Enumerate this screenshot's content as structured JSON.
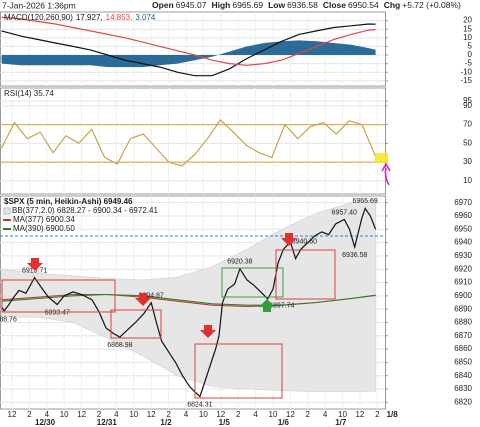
{
  "header": {
    "date": "7-Jan-2026 1:36pm",
    "fields": [
      {
        "label": "Open",
        "value": "6945.07"
      },
      {
        "label": "High",
        "value": "6965.69"
      },
      {
        "label": "Low",
        "value": "6936.58"
      },
      {
        "label": "Close",
        "value": "6950.54"
      },
      {
        "label": "Chg",
        "value": "+5.72 (+0.08%)"
      }
    ]
  },
  "chart_data": [
    {
      "type": "line",
      "title": "MACD(120,260,90)",
      "x": [
        -0.6,
        0.5,
        1.5,
        2.5,
        3.5,
        4.5,
        5.5,
        6.5,
        7.5,
        8.5,
        9.5,
        10.5,
        11.5,
        12.5,
        13.5,
        14.5,
        15.5,
        16.5,
        17.5,
        18.5,
        19.5,
        20.5,
        20.9
      ],
      "series": [
        {
          "label": "17.927,",
          "color": "#111111",
          "values": [
            14,
            11,
            9,
            7,
            5,
            3,
            0,
            -3,
            -5,
            -7,
            -10,
            -12,
            -12,
            -8,
            -2,
            3,
            8,
            12,
            14,
            16,
            17,
            18,
            17.927
          ]
        },
        {
          "label": "14.853,",
          "color": "#e04848",
          "values": [
            22,
            21,
            19.5,
            18,
            16,
            14,
            12,
            10,
            7.5,
            5,
            2.5,
            0,
            -3,
            -5,
            -6,
            -5,
            -3,
            1,
            5,
            9,
            12,
            14.5,
            14.853
          ]
        },
        {
          "label": "3.074",
          "color": "#1f6391",
          "type": "area",
          "values": [
            -5,
            -6,
            -6,
            -6,
            -6,
            -6,
            -7,
            -7,
            -7,
            -6,
            -5,
            -3,
            -1,
            2,
            5,
            7,
            8,
            8.5,
            8,
            7,
            6,
            4,
            3.074
          ]
        }
      ],
      "xlim": [
        -0.69,
        21.44
      ],
      "ylim": [
        -18,
        25
      ],
      "yticks": [
        20,
        15,
        10,
        5,
        0,
        -5,
        -10,
        -15
      ],
      "grid": true
    },
    {
      "type": "line",
      "title": "RSI(14) 35.74",
      "x": [
        -0.6,
        0.14,
        0.88,
        1.62,
        2.36,
        3.1,
        3.84,
        4.58,
        5.32,
        6.06,
        6.8,
        7.54,
        8.28,
        9.02,
        9.76,
        10.5,
        11.24,
        11.98,
        12.72,
        13.46,
        14.2,
        14.94,
        15.68,
        16.42,
        17.16,
        17.9,
        18.64,
        19.38,
        20.12,
        20.9
      ],
      "series": [
        {
          "color": "#c9a24a",
          "values": [
            45,
            72,
            55,
            62,
            40,
            58,
            50,
            65,
            35,
            28,
            55,
            60,
            45,
            30,
            26,
            38,
            55,
            75,
            62,
            48,
            40,
            35,
            70,
            55,
            68,
            72,
            60,
            74,
            70,
            35.74
          ]
        }
      ],
      "ref_lines": [
        70,
        30
      ],
      "ref_color": "#e0a030",
      "xlim": [
        -0.69,
        21.44
      ],
      "ylim": [
        -4,
        109
      ],
      "yticks": [
        95,
        90,
        70,
        50,
        30,
        10
      ],
      "grid": true
    },
    {
      "type": "line",
      "title": "$SPX (5 min, Heikin-Ashi) 6949.46",
      "x": [
        -0.6,
        -0.45,
        -0.2,
        0.1,
        0.4,
        0.8,
        1.3,
        1.7,
        2.1,
        2.6,
        3,
        3.5,
        4,
        4.6,
        5,
        5.4,
        5.8,
        6.2,
        6.6,
        7.1,
        7.6,
        8,
        8.3,
        8.6,
        9,
        9.4,
        9.8,
        10.2,
        10.5,
        10.8,
        11.1,
        11.4,
        11.7,
        11.9,
        12.1,
        12.4,
        12.8,
        13.1,
        13.5,
        13.9,
        14.3,
        14.7,
        15,
        15.3,
        15.6,
        16,
        16.3,
        16.6,
        17,
        17.4,
        17.8,
        18.2,
        18.6,
        19.1,
        19.4,
        19.7,
        20.1,
        20.3,
        20.6,
        20.9
      ],
      "series": [
        {
          "color": "#111111",
          "values": [
            6892,
            6888.76,
            6893,
            6899,
            6904,
            6902,
            6913.71,
            6906,
            6899,
            6893.47,
            6900,
            6903,
            6901,
            6897,
            6888,
            6876,
            6872,
            6868.98,
            6874,
            6880,
            6887,
            6894.87,
            6880,
            6866,
            6858,
            6850,
            6840,
            6832,
            6828,
            6824.31,
            6836,
            6848,
            6860,
            6870,
            6895,
            6905,
            6909,
            6920.38,
            6912,
            6908,
            6903,
            6897.74,
            6905,
            6925,
            6935,
            6940.6,
            6928,
            6935,
            6940,
            6945,
            6948,
            6946,
            6954,
            6957.4,
            6950,
            6936.58,
            6958,
            6965.69,
            6960,
            6950
          ]
        }
      ],
      "x2": [
        -0.6,
        1.5,
        3.5,
        5.5,
        7.5,
        9.5,
        11.5,
        13.5,
        15.5,
        17.5,
        19.5,
        20.9
      ],
      "band": {
        "name": "BB(377,2.0) 6828.27 - 6900.34 - 6972.41",
        "color": "#e6e6e6",
        "upper": [
          6920,
          6917,
          6915,
          6913,
          6912,
          6914,
          6922,
          6935,
          6950,
          6962,
          6970,
          6972.41
        ],
        "lower": [
          6884,
          6884,
          6880,
          6868,
          6855,
          6840,
          6832,
          6830,
          6829,
          6828,
          6828,
          6828.27
        ]
      },
      "lines2": [
        {
          "name": "MA(377) 6900.34",
          "color": "#c0392b",
          "values": [
            6897,
            6899,
            6901,
            6901,
            6899,
            6896,
            6893,
            6892,
            6893,
            6895,
            6898,
            6900.34
          ]
        },
        {
          "name": "MA(390) 6900.50",
          "color": "#2e7d32",
          "values": [
            6896,
            6898,
            6900,
            6901,
            6900,
            6897,
            6894,
            6893,
            6893,
            6895,
            6898,
            6900.5
          ]
        }
      ],
      "annotations": [
        {
          "x": 1.3,
          "value": 6913.71,
          "label": "6913.71"
        },
        {
          "x": -0.45,
          "value": 6888.76,
          "label": "6888.76"
        },
        {
          "x": 2.6,
          "value": 6893.47,
          "label": "6893.47"
        },
        {
          "x": 6.2,
          "value": 6868.98,
          "label": "6868.98"
        },
        {
          "x": 8,
          "value": 6894.87,
          "label": "6894.87"
        },
        {
          "x": 10.8,
          "value": 6824.31,
          "label": "6824.31"
        },
        {
          "x": 13.1,
          "value": 6920.38,
          "label": "6920.38"
        },
        {
          "x": 14.7,
          "value": 6897.74,
          "label": "6897.74"
        },
        {
          "x": 16,
          "value": 6940.6,
          "label": "6940.60"
        },
        {
          "x": 19.1,
          "value": 6957.4,
          "label": "6957.40"
        },
        {
          "x": 20.3,
          "value": 6965.69,
          "label": "6965.69"
        },
        {
          "x": 19.7,
          "value": 6936.58,
          "label": "6936.58"
        }
      ],
      "ref_lines": [
        6945
      ],
      "ref_color": "#3a7bd5",
      "xlim": [
        -0.69,
        21.44
      ],
      "ylim": [
        6815,
        6975
      ],
      "yticks": [
        6970,
        6960,
        6950,
        6940,
        6930,
        6920,
        6910,
        6900,
        6890,
        6880,
        6870,
        6860,
        6850,
        6840,
        6830,
        6820
      ],
      "xticks": [
        {
          "value": 0,
          "label": "12"
        },
        {
          "value": 1,
          "label": "2"
        },
        {
          "value": 2,
          "label": "4"
        },
        {
          "value": 3,
          "label": "10"
        },
        {
          "value": 4,
          "label": "12"
        },
        {
          "value": 5,
          "label": "2"
        },
        {
          "value": 6,
          "label": "4"
        },
        {
          "value": 7,
          "label": "10"
        },
        {
          "value": 8,
          "label": "12"
        },
        {
          "value": 9,
          "label": "2"
        },
        {
          "value": 10,
          "label": "4"
        },
        {
          "value": 11,
          "label": "10"
        },
        {
          "value": 12,
          "label": "12"
        },
        {
          "value": 13,
          "label": "2"
        },
        {
          "value": 14,
          "label": "4"
        },
        {
          "value": 15,
          "label": "10"
        },
        {
          "value": 16,
          "label": "12"
        },
        {
          "value": 17,
          "label": "2"
        },
        {
          "value": 18,
          "label": "4"
        },
        {
          "value": 19,
          "label": "10"
        },
        {
          "value": 20,
          "label": "12"
        },
        {
          "value": 21,
          "label": "2"
        }
      ],
      "xdates": [
        {
          "value": 1.9,
          "label": "12/30"
        },
        {
          "value": 5.45,
          "label": "12/31"
        },
        {
          "value": 8.85,
          "label": "1/2"
        },
        {
          "value": 12.2,
          "label": "1/5"
        },
        {
          "value": 15.6,
          "label": "1/6"
        },
        {
          "value": 18.9,
          "label": "1/7"
        },
        {
          "value": 21.85,
          "label": "1/8"
        }
      ],
      "grid": true
    }
  ]
}
